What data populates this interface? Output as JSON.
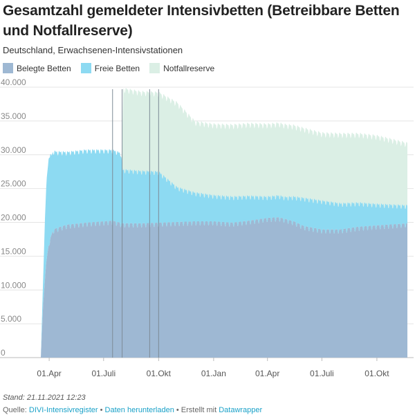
{
  "title": "Gesamtzahl gemeldeter Intensivbetten (Betreibbare Betten und Notfallreserve)",
  "subtitle": "Deutschland, Erwachsenen-Intensivstationen",
  "colors": {
    "belegt": "#9eb8d3",
    "frei": "#8ddaf2",
    "notfall": "#dbefe5",
    "grid": "#e4e4e4",
    "marker": "#7d8b96"
  },
  "footer": {
    "stand": "Stand: 21.11.2021 12:23",
    "quelle_label": "Quelle: ",
    "source_link": "DIVI-Intensivregister",
    "sep1": " • ",
    "download_link": "Daten herunterladen",
    "sep2": " • Erstellt mit ",
    "tool_link": "Datawrapper"
  },
  "chart_data": {
    "type": "area",
    "stacked": true,
    "legend_position": "top-left",
    "grid": true,
    "ylim": [
      0,
      40000
    ],
    "yticks": [
      "0",
      "5.000",
      "10.000",
      "15.000",
      "20.000",
      "25.000",
      "30.000",
      "35.000",
      "40.000"
    ],
    "ytick_values": [
      0,
      5000,
      10000,
      15000,
      20000,
      25000,
      30000,
      35000,
      40000
    ],
    "xlim": [
      "2020-03-18",
      "2021-11-21"
    ],
    "xticks": [
      {
        "date": "2020-04-01",
        "label": "01.Apr"
      },
      {
        "date": "2020-07-01",
        "label": "01.Juli"
      },
      {
        "date": "2020-10-01",
        "label": "01.Okt"
      },
      {
        "date": "2021-01-01",
        "label": "01.Jan"
      },
      {
        "date": "2021-04-01",
        "label": "01.Apr"
      },
      {
        "date": "2021-07-01",
        "label": "01.Juli"
      },
      {
        "date": "2021-10-01",
        "label": "01.Okt"
      }
    ],
    "event_lines": [
      "2020-07-16",
      "2020-08-01",
      "2020-09-16",
      "2020-10-01"
    ],
    "series": [
      {
        "name": "Belegte Betten",
        "values": [
          [
            "2020-03-18",
            0
          ],
          [
            "2020-03-22",
            8000
          ],
          [
            "2020-03-27",
            14000
          ],
          [
            "2020-04-01",
            17000
          ],
          [
            "2020-04-08",
            18800
          ],
          [
            "2020-04-20",
            19200
          ],
          [
            "2020-05-01",
            19500
          ],
          [
            "2020-06-01",
            19800
          ],
          [
            "2020-07-01",
            20000
          ],
          [
            "2020-07-16",
            20100
          ],
          [
            "2020-08-01",
            19700
          ],
          [
            "2020-09-01",
            19700
          ],
          [
            "2020-10-01",
            19800
          ],
          [
            "2020-11-01",
            19900
          ],
          [
            "2020-12-01",
            20000
          ],
          [
            "2021-01-01",
            20000
          ],
          [
            "2021-02-01",
            19800
          ],
          [
            "2021-03-01",
            20100
          ],
          [
            "2021-04-01",
            20500
          ],
          [
            "2021-04-20",
            20600
          ],
          [
            "2021-05-15",
            20000
          ],
          [
            "2021-06-01",
            19300
          ],
          [
            "2021-07-01",
            18800
          ],
          [
            "2021-08-01",
            18800
          ],
          [
            "2021-09-01",
            19200
          ],
          [
            "2021-10-01",
            19400
          ],
          [
            "2021-11-21",
            19700
          ]
        ]
      },
      {
        "name": "Freie Betten",
        "values": [
          [
            "2020-03-18",
            0
          ],
          [
            "2020-03-22",
            4000
          ],
          [
            "2020-03-25",
            9000
          ],
          [
            "2020-03-28",
            12000
          ],
          [
            "2020-04-01",
            13000
          ],
          [
            "2020-04-05",
            11800
          ],
          [
            "2020-04-15",
            11300
          ],
          [
            "2020-05-01",
            10800
          ],
          [
            "2020-06-01",
            10800
          ],
          [
            "2020-07-01",
            10600
          ],
          [
            "2020-07-30",
            10400
          ],
          [
            "2020-08-02",
            8000
          ],
          [
            "2020-09-01",
            7800
          ],
          [
            "2020-10-01",
            7600
          ],
          [
            "2020-11-01",
            5200
          ],
          [
            "2020-12-01",
            4300
          ],
          [
            "2021-01-01",
            3900
          ],
          [
            "2021-02-01",
            3900
          ],
          [
            "2021-03-01",
            3700
          ],
          [
            "2021-04-01",
            3200
          ],
          [
            "2021-05-01",
            3300
          ],
          [
            "2021-06-01",
            4200
          ],
          [
            "2021-07-01",
            4300
          ],
          [
            "2021-08-01",
            3900
          ],
          [
            "2021-09-01",
            3600
          ],
          [
            "2021-10-01",
            3200
          ],
          [
            "2021-11-21",
            2700
          ]
        ]
      },
      {
        "name": "Notfallreserve",
        "values": [
          [
            "2020-03-18",
            0
          ],
          [
            "2020-07-31",
            0
          ],
          [
            "2020-08-03",
            12000
          ],
          [
            "2020-09-01",
            11700
          ],
          [
            "2020-10-01",
            11700
          ],
          [
            "2020-11-01",
            12500
          ],
          [
            "2020-12-01",
            10500
          ],
          [
            "2021-01-01",
            10500
          ],
          [
            "2021-02-01",
            10600
          ],
          [
            "2021-03-01",
            10700
          ],
          [
            "2021-04-01",
            10700
          ],
          [
            "2021-05-01",
            10700
          ],
          [
            "2021-06-01",
            10300
          ],
          [
            "2021-07-01",
            10000
          ],
          [
            "2021-08-01",
            10300
          ],
          [
            "2021-09-01",
            10200
          ],
          [
            "2021-10-01",
            10100
          ],
          [
            "2021-11-21",
            9200
          ]
        ]
      }
    ]
  }
}
